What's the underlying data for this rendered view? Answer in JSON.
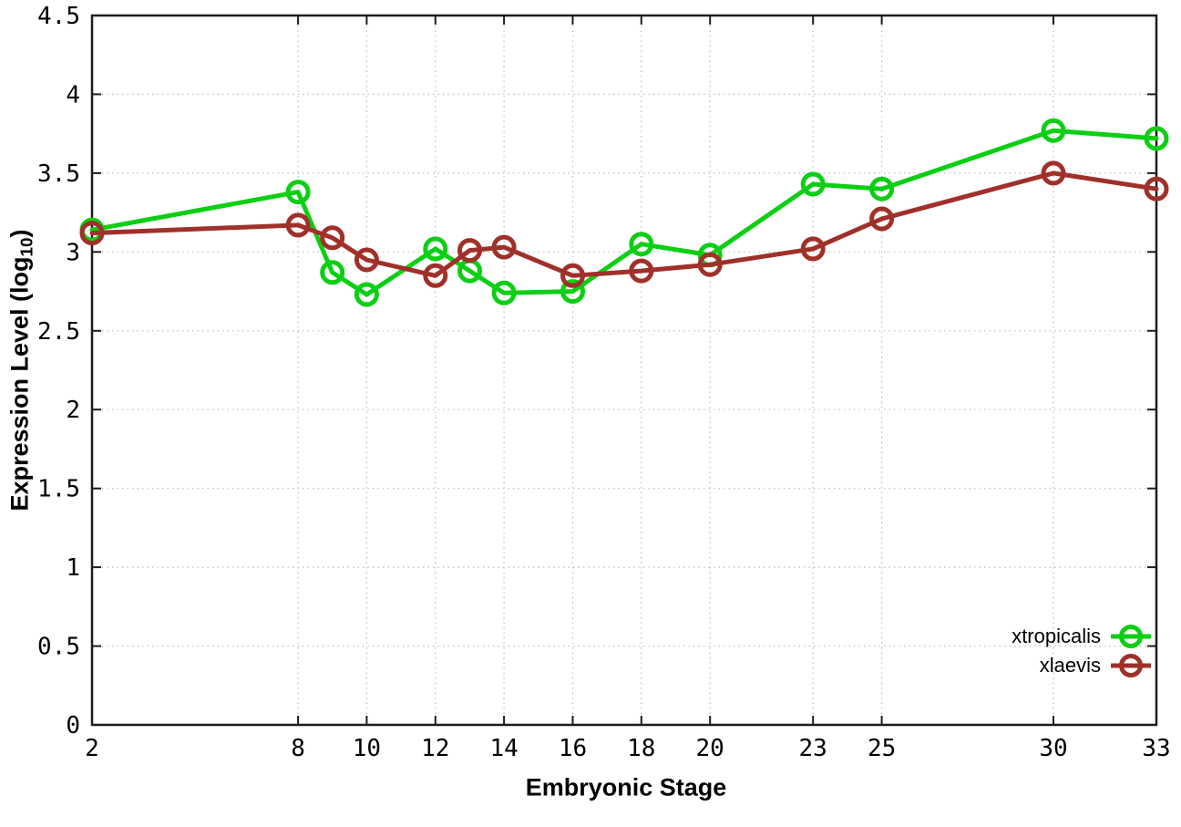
{
  "chart_data": {
    "type": "line",
    "title": "",
    "xlabel": "Embryonic Stage",
    "ylabel": "Expression Level (log10)",
    "ylabel_parts": {
      "prefix": "Expression Level (log",
      "sub": "10",
      "suffix": ")"
    },
    "xlim": [
      2,
      33
    ],
    "ylim": [
      0,
      4.5
    ],
    "x_ticks": [
      2,
      8,
      10,
      12,
      14,
      16,
      18,
      20,
      23,
      25,
      30,
      33
    ],
    "y_ticks": [
      0,
      0.5,
      1,
      1.5,
      2,
      2.5,
      3,
      3.5,
      4,
      4.5
    ],
    "y_tick_labels": [
      "0",
      "0.5",
      "1",
      "1.5",
      "2",
      "2.5",
      "3",
      "3.5",
      "4",
      "4.5"
    ],
    "grid": true,
    "legend_position": "bottom-right",
    "marker": "open-circle",
    "series": [
      {
        "name": "xtropicalis",
        "color": "#0ccf14",
        "x": [
          2,
          8,
          9,
          10,
          12,
          13,
          14,
          16,
          18,
          20,
          23,
          25,
          30,
          33
        ],
        "y": [
          3.14,
          3.38,
          2.87,
          2.73,
          3.02,
          2.88,
          2.74,
          2.75,
          3.05,
          2.98,
          3.43,
          3.4,
          3.77,
          3.72
        ]
      },
      {
        "name": "xlaevis",
        "color": "#a0302a",
        "x": [
          2,
          8,
          9,
          10,
          12,
          13,
          14,
          16,
          18,
          20,
          23,
          25,
          30,
          33
        ],
        "y": [
          3.12,
          3.17,
          3.09,
          2.95,
          2.85,
          3.01,
          3.03,
          2.85,
          2.88,
          2.92,
          3.02,
          3.21,
          3.5,
          3.4
        ]
      }
    ],
    "colors": {
      "grid": "#bcbcbc",
      "axis": "#1c1c1c",
      "text": "#000000",
      "background": "#ffffff"
    }
  }
}
